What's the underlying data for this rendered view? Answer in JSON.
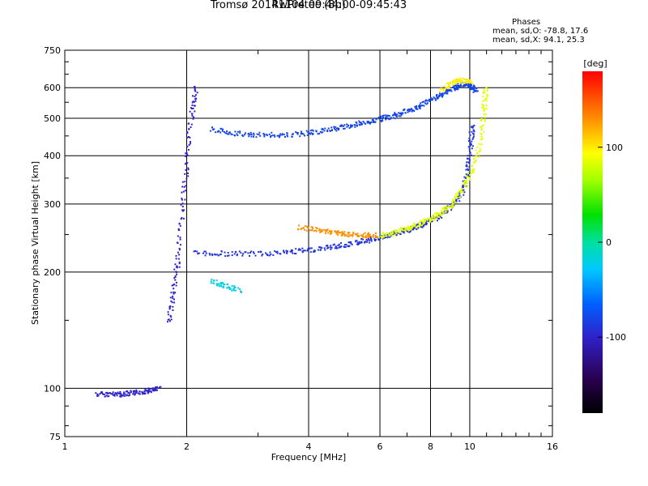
{
  "header": {
    "title_line1": "Tromsø 20141104 09:44:00-09:45:43",
    "title_line2": "RwPretec (8p)"
  },
  "stats": {
    "heading": "Phases",
    "o_mode": "mean, sd,O: -78.8, 17.6",
    "x_mode": "mean, sd,X:  94.1, 25.3"
  },
  "chart_data": {
    "type": "scatter",
    "x_scale": "log",
    "y_scale": "log",
    "xlabel": "Frequency [MHz]",
    "ylabel": "Stationary phase Virtual Height [km]",
    "xlim": [
      1,
      16
    ],
    "ylim": [
      75,
      750
    ],
    "x_ticks": [
      {
        "value": 1,
        "label": "1"
      },
      {
        "value": 2,
        "label": "2"
      },
      {
        "value": 4,
        "label": "4"
      },
      {
        "value": 6,
        "label": "6"
      },
      {
        "value": 8,
        "label": "8"
      },
      {
        "value": 10,
        "label": "10"
      },
      {
        "value": 16,
        "label": "16"
      }
    ],
    "y_ticks": [
      {
        "value": 75,
        "label": "75"
      },
      {
        "value": 100,
        "label": "100"
      },
      {
        "value": 200,
        "label": "200"
      },
      {
        "value": 300,
        "label": "300"
      },
      {
        "value": 400,
        "label": "400"
      },
      {
        "value": 500,
        "label": "500"
      },
      {
        "value": 600,
        "label": "600"
      },
      {
        "value": 750,
        "label": "750"
      }
    ],
    "grid": true,
    "colorbar": {
      "label": "[deg]",
      "range": [
        -180,
        180
      ],
      "ticks": [
        {
          "value": 100,
          "label": "100"
        },
        {
          "value": 0,
          "label": "0"
        },
        {
          "value": -100,
          "label": "-100"
        }
      ]
    },
    "series": [
      {
        "phase": -100,
        "points": [
          [
            1.2,
            97
          ],
          [
            1.3,
            97
          ],
          [
            1.4,
            97
          ],
          [
            1.5,
            98
          ],
          [
            1.6,
            99
          ],
          [
            1.7,
            100
          ]
        ]
      },
      {
        "phase": -100,
        "points": [
          [
            1.8,
            150
          ],
          [
            1.85,
            180
          ],
          [
            1.9,
            220
          ],
          [
            1.95,
            300
          ],
          [
            2.0,
            400
          ],
          [
            2.05,
            520
          ],
          [
            2.1,
            600
          ]
        ]
      },
      {
        "phase": -90,
        "points": [
          [
            2.1,
            225
          ],
          [
            2.5,
            224
          ],
          [
            3.0,
            224
          ],
          [
            3.5,
            226
          ],
          [
            4.0,
            229
          ],
          [
            4.5,
            233
          ],
          [
            5.0,
            237
          ],
          [
            5.5,
            242
          ],
          [
            6.0,
            247
          ],
          [
            6.5,
            252
          ],
          [
            7.0,
            258
          ],
          [
            7.5,
            265
          ],
          [
            8.0,
            273
          ],
          [
            8.5,
            283
          ],
          [
            9.0,
            297
          ],
          [
            9.5,
            320
          ],
          [
            9.8,
            360
          ],
          [
            10.0,
            420
          ],
          [
            10.1,
            480
          ]
        ]
      },
      {
        "phase": 85,
        "points": [
          [
            6.0,
            249
          ],
          [
            6.5,
            254
          ],
          [
            7.0,
            261
          ],
          [
            7.5,
            268
          ],
          [
            8.0,
            276
          ],
          [
            8.5,
            286
          ],
          [
            9.0,
            300
          ],
          [
            9.5,
            325
          ],
          [
            10.0,
            360
          ],
          [
            10.5,
            420
          ],
          [
            10.8,
            520
          ],
          [
            10.9,
            600
          ]
        ]
      },
      {
        "phase": -80,
        "points": [
          [
            2.3,
            470
          ],
          [
            2.6,
            460
          ],
          [
            3.0,
            455
          ],
          [
            3.5,
            455
          ],
          [
            4.0,
            460
          ],
          [
            4.5,
            470
          ],
          [
            5.0,
            480
          ],
          [
            5.5,
            490
          ],
          [
            6.0,
            500
          ],
          [
            6.5,
            510
          ],
          [
            7.0,
            525
          ],
          [
            7.5,
            540
          ],
          [
            8.0,
            560
          ],
          [
            8.5,
            580
          ],
          [
            9.0,
            600
          ],
          [
            9.5,
            615
          ],
          [
            10.0,
            610
          ],
          [
            10.3,
            590
          ]
        ]
      },
      {
        "phase": 100,
        "points": [
          [
            8.5,
            590
          ],
          [
            9.0,
            620
          ],
          [
            9.5,
            630
          ],
          [
            10.0,
            625
          ]
        ]
      },
      {
        "phase": 130,
        "points": [
          [
            3.8,
            262
          ],
          [
            4.2,
            258
          ],
          [
            4.6,
            254
          ],
          [
            5.0,
            252
          ],
          [
            5.4,
            250
          ],
          [
            5.8,
            250
          ]
        ]
      },
      {
        "phase": -20,
        "points": [
          [
            2.3,
            190
          ],
          [
            2.5,
            185
          ],
          [
            2.7,
            180
          ]
        ]
      }
    ]
  }
}
